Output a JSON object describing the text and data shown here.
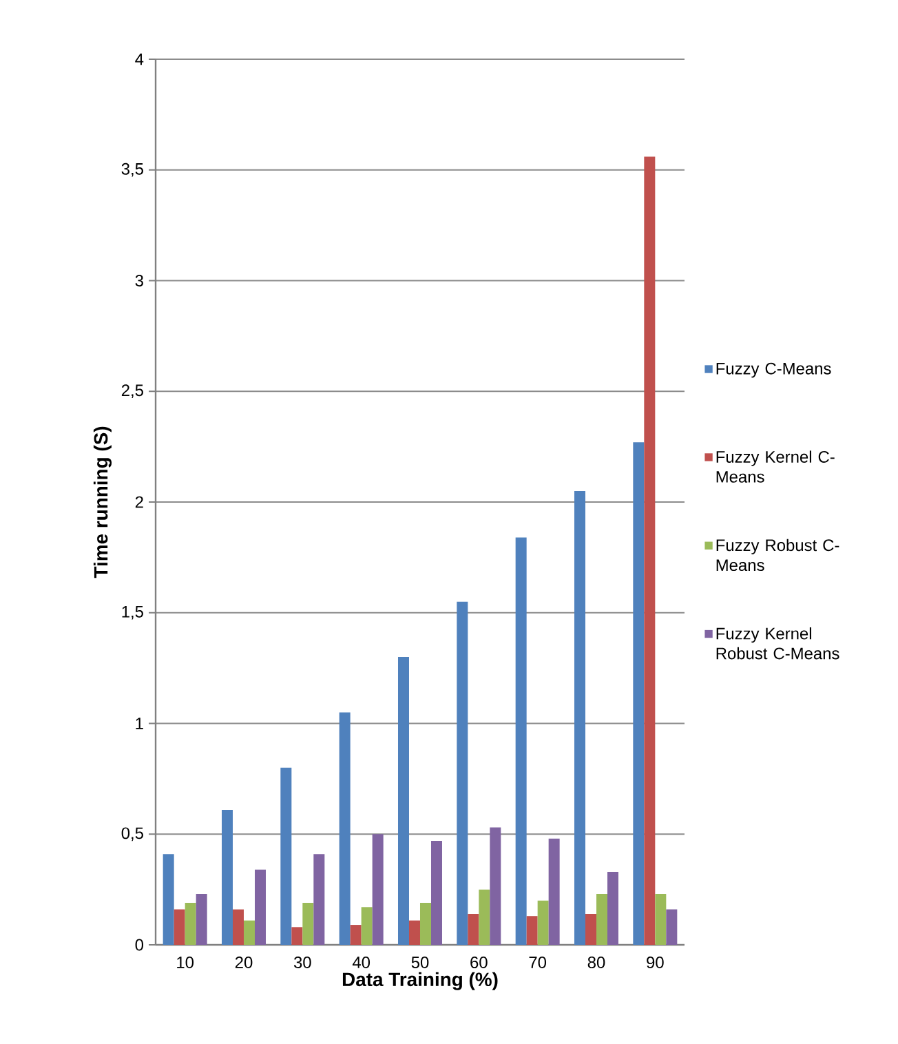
{
  "chart_data": {
    "type": "bar",
    "xlabel": "Data Training (%)",
    "ylabel": "Time running (S)",
    "categories": [
      "10",
      "20",
      "30",
      "40",
      "50",
      "60",
      "70",
      "80",
      "90"
    ],
    "series": [
      {
        "name": "Fuzzy C-Means",
        "color": "#4f81bd",
        "values": [
          0.41,
          0.61,
          0.8,
          1.05,
          1.3,
          1.55,
          1.84,
          2.05,
          2.27
        ]
      },
      {
        "name": "Fuzzy Kernel C-Means",
        "color": "#c0504d",
        "values": [
          0.16,
          0.16,
          0.08,
          0.09,
          0.11,
          0.14,
          0.13,
          0.14,
          3.56
        ]
      },
      {
        "name": "Fuzzy Robust C-Means",
        "color": "#9bbb59",
        "values": [
          0.19,
          0.11,
          0.19,
          0.17,
          0.19,
          0.25,
          0.2,
          0.23,
          0.23
        ]
      },
      {
        "name": "Fuzzy Kernel Robust C-Means",
        "color": "#8064a2",
        "values": [
          0.23,
          0.34,
          0.41,
          0.5,
          0.47,
          0.53,
          0.48,
          0.33,
          0.16
        ]
      }
    ],
    "ylim": [
      0,
      4
    ],
    "yticks": [
      0,
      {
        "value": 0.5,
        "label": "0,5"
      },
      1,
      {
        "value": 1.5,
        "label": "1,5"
      },
      2,
      {
        "value": 2.5,
        "label": "2,5"
      },
      3,
      {
        "value": 3.5,
        "label": "3,5"
      },
      4
    ],
    "grid": "y",
    "legend": "right"
  }
}
